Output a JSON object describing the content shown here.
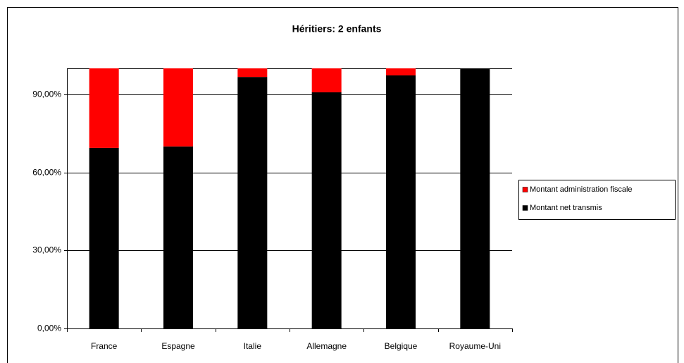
{
  "chart_data": {
    "type": "stacked_bar",
    "title": "Héritiers: 2 enfants",
    "categories": [
      "France",
      "Espagne",
      "Italie",
      "Allemagne",
      "Belgique",
      "Royaume-Uni"
    ],
    "series": [
      {
        "name": "Montant administration fiscale",
        "color": "#ff0000",
        "values": [
          30.6,
          30,
          3.3,
          9.2,
          2.7,
          0
        ]
      },
      {
        "name": "Montant net transmis",
        "color": "#000000",
        "values": [
          69.4,
          70,
          96.7,
          90.8,
          97.3,
          100
        ]
      }
    ],
    "ylim": [
      0,
      100
    ],
    "yticks": [
      {
        "value": 0,
        "label": "0,00%"
      },
      {
        "value": 30,
        "label": "30,00%"
      },
      {
        "value": 60,
        "label": "60,00%"
      },
      {
        "value": 90,
        "label": "90,00%"
      }
    ],
    "grid": true,
    "legend": "right"
  }
}
